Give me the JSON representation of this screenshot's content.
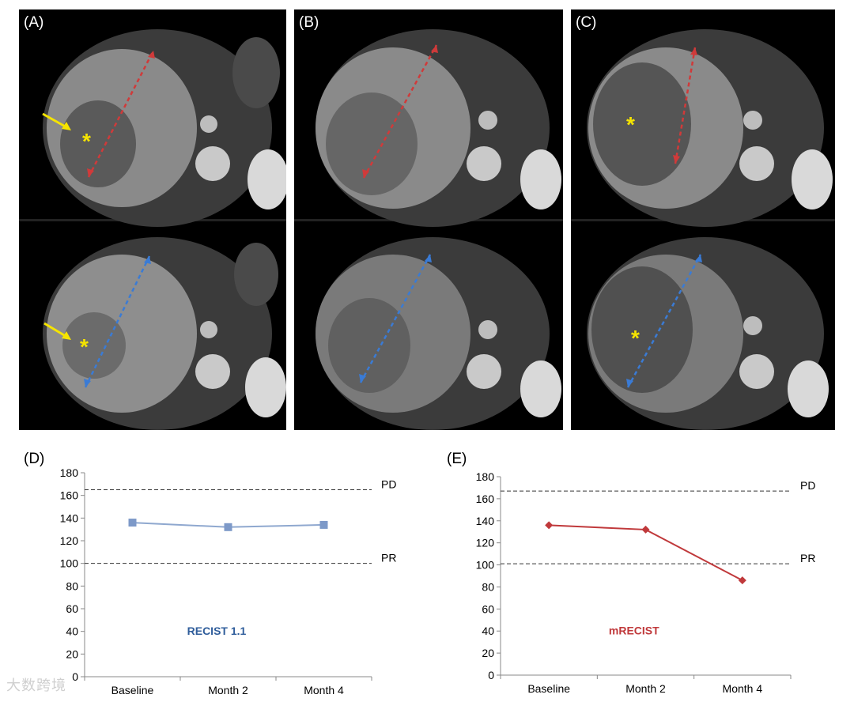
{
  "panels": {
    "a": {
      "label": "(A)"
    },
    "b": {
      "label": "(B)"
    },
    "c": {
      "label": "(C)"
    }
  },
  "markers": {
    "asterisk": "*"
  },
  "colors": {
    "ct_measure_baseline": "#d03a3a",
    "ct_measure_followup": "#3a7bd5",
    "arrow": "#f5e400",
    "recist_series": "#8fa8cf",
    "recist_marker": "#7d99c8",
    "recist_label": "#2f5d9b",
    "mrecist_series": "#c0393b",
    "mrecist_label": "#c0393b"
  },
  "watermark": "大数跨境",
  "chart_data": [
    {
      "panel_label": "(D)",
      "type": "line",
      "title": "RECIST 1.1",
      "categories": [
        "Baseline",
        "Month 2",
        "Month 4"
      ],
      "series": [
        {
          "name": "RECIST 1.1",
          "values": [
            136,
            132,
            134
          ]
        }
      ],
      "ylim": [
        0,
        180
      ],
      "yticks": [
        0,
        20,
        40,
        60,
        80,
        100,
        120,
        140,
        160,
        180
      ],
      "reference_lines": [
        {
          "label": "PD",
          "value": 165
        },
        {
          "label": "PR",
          "value": 100
        }
      ],
      "marker": "square"
    },
    {
      "panel_label": "(E)",
      "type": "line",
      "title": "mRECIST",
      "categories": [
        "Baseline",
        "Month 2",
        "Month 4"
      ],
      "series": [
        {
          "name": "mRECIST",
          "values": [
            136,
            132,
            86
          ]
        }
      ],
      "ylim": [
        0,
        180
      ],
      "yticks": [
        0,
        20,
        40,
        60,
        80,
        100,
        120,
        140,
        160,
        180
      ],
      "reference_lines": [
        {
          "label": "PD",
          "value": 167
        },
        {
          "label": "PR",
          "value": 101
        }
      ],
      "marker": "diamond"
    }
  ]
}
